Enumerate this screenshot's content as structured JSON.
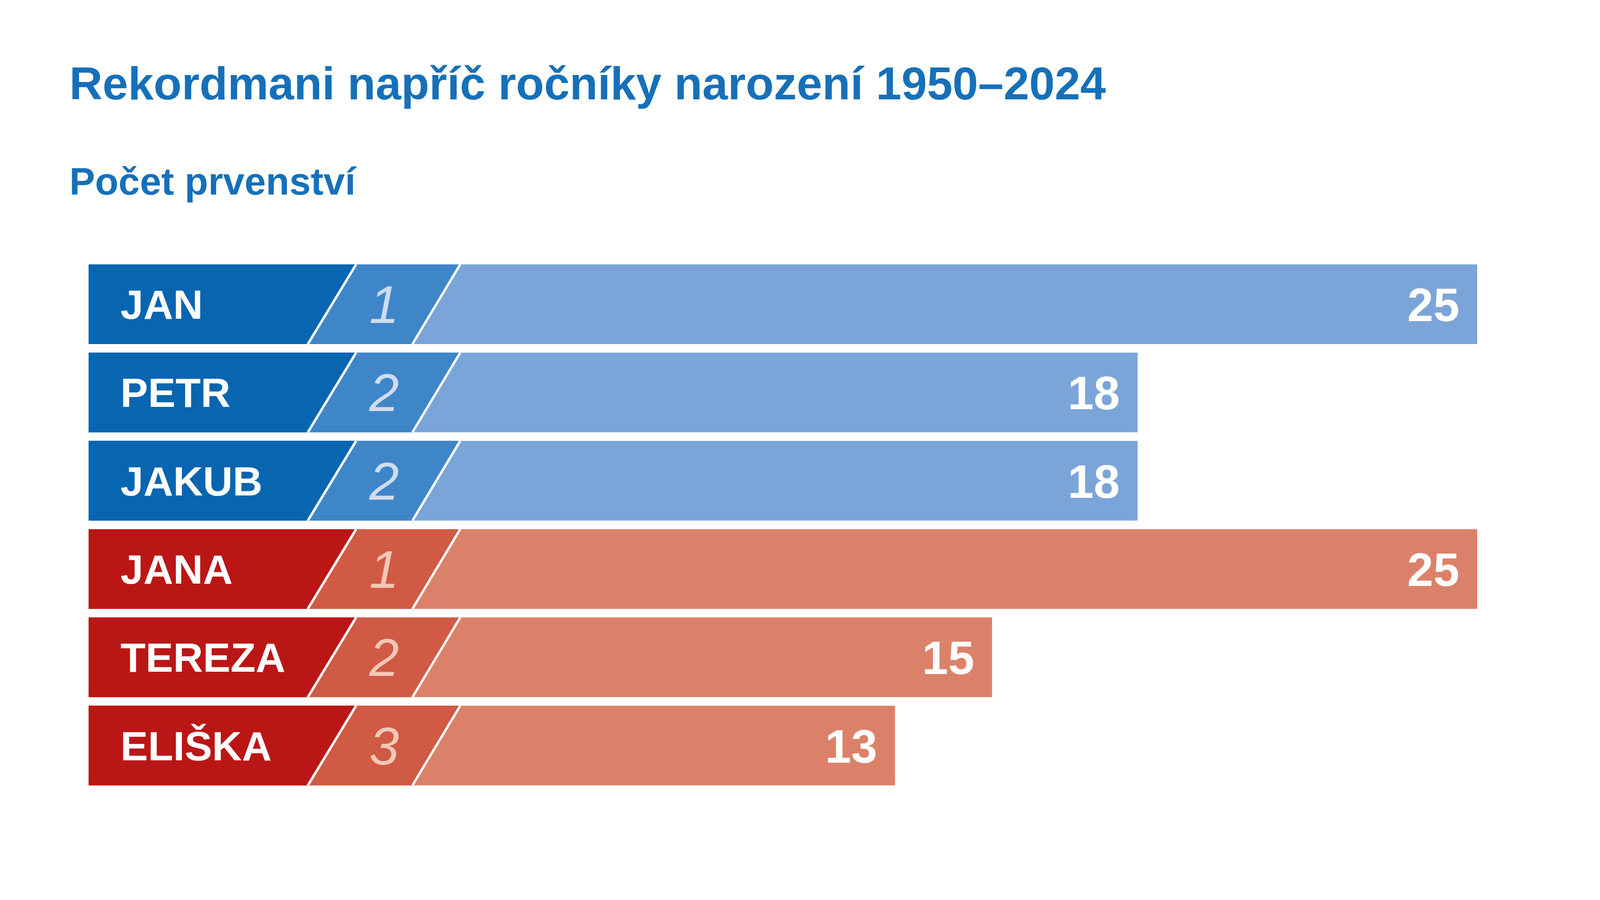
{
  "chart_data": {
    "type": "bar",
    "orientation": "horizontal",
    "title": "Rekordmani napříč ročníky narození 1950–2024",
    "subtitle": "Počet prvenství",
    "categories": [
      "JAN",
      "PETR",
      "JAKUB",
      "JANA",
      "TEREZA",
      "ELIŠKA"
    ],
    "values": [
      25,
      18,
      18,
      25,
      15,
      13
    ],
    "ranks": [
      1,
      2,
      2,
      1,
      2,
      3
    ],
    "colors": [
      "#7ba5d8",
      "#7ba5d8",
      "#7ba5d8",
      "#dc8169",
      "#dc8169",
      "#dc8169"
    ],
    "xlim": [
      0,
      25
    ],
    "data_labels": true,
    "tick_labels": false,
    "grid": false
  }
}
